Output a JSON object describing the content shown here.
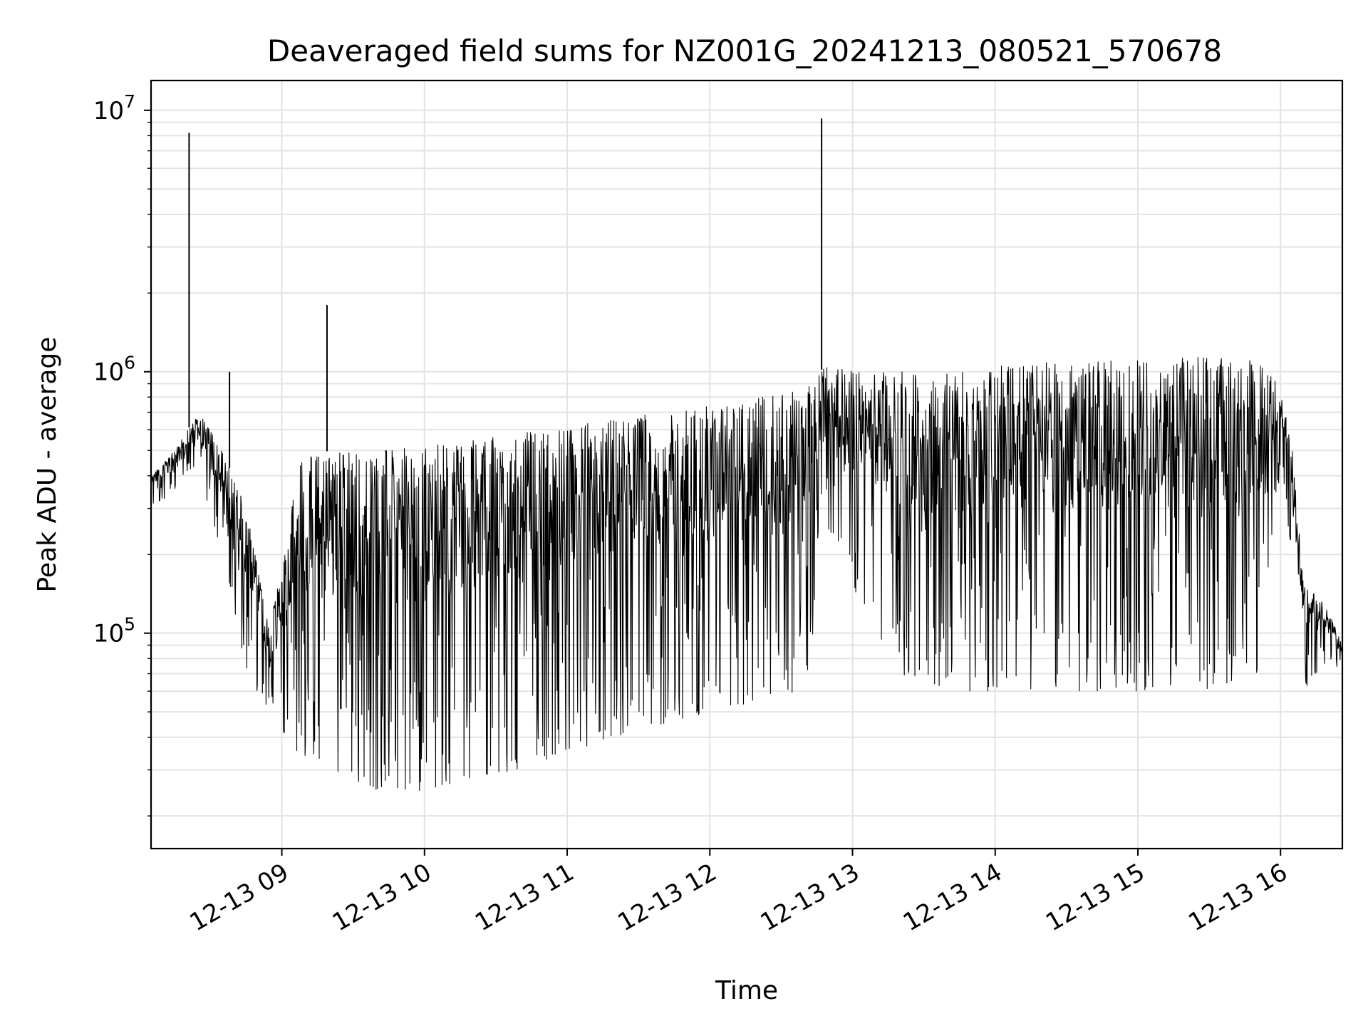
{
  "chart_data": {
    "type": "line",
    "title": "Deaveraged field sums for NZ001G_20241213_080521_570678",
    "xlabel": "Time",
    "ylabel": "Peak ADU - average",
    "y_scale": "log",
    "ylim": [
      15000,
      13000000
    ],
    "xlim": [
      "2024-12-13 08:05",
      "2024-12-13 16:26"
    ],
    "grid": true,
    "x_ticks": [
      {
        "label": "12-13 09",
        "time": "2024-12-13 09:00"
      },
      {
        "label": "12-13 10",
        "time": "2024-12-13 10:00"
      },
      {
        "label": "12-13 11",
        "time": "2024-12-13 11:00"
      },
      {
        "label": "12-13 12",
        "time": "2024-12-13 12:00"
      },
      {
        "label": "12-13 13",
        "time": "2024-12-13 13:00"
      },
      {
        "label": "12-13 14",
        "time": "2024-12-13 14:00"
      },
      {
        "label": "12-13 15",
        "time": "2024-12-13 15:00"
      },
      {
        "label": "12-13 16",
        "time": "2024-12-13 16:00"
      }
    ],
    "y_ticks": [
      {
        "base": "10",
        "exp": "5",
        "value": 100000
      },
      {
        "base": "10",
        "exp": "6",
        "value": 1000000
      },
      {
        "base": "10",
        "exp": "7",
        "value": 10000000
      }
    ],
    "line_color": "#000000",
    "series_envelope": {
      "times": [
        "2024-12-13 08:05",
        "2024-12-13 08:15",
        "2024-12-13 08:25",
        "2024-12-13 08:35",
        "2024-12-13 08:45",
        "2024-12-13 08:55",
        "2024-12-13 09:05",
        "2024-12-13 09:20",
        "2024-12-13 09:40",
        "2024-12-13 10:00",
        "2024-12-13 10:20",
        "2024-12-13 10:40",
        "2024-12-13 11:00",
        "2024-12-13 11:20",
        "2024-12-13 11:40",
        "2024-12-13 12:00",
        "2024-12-13 12:20",
        "2024-12-13 12:40",
        "2024-12-13 12:50",
        "2024-12-13 13:00",
        "2024-12-13 13:20",
        "2024-12-13 13:40",
        "2024-12-13 14:00",
        "2024-12-13 14:30",
        "2024-12-13 15:00",
        "2024-12-13 15:30",
        "2024-12-13 15:50",
        "2024-12-13 16:00",
        "2024-12-13 16:05",
        "2024-12-13 16:10",
        "2024-12-13 16:20",
        "2024-12-13 16:26"
      ],
      "upper": [
        400000,
        500000,
        700000,
        500000,
        300000,
        100000,
        450000,
        500000,
        500000,
        520000,
        550000,
        580000,
        620000,
        660000,
        700000,
        750000,
        800000,
        850000,
        1100000,
        1000000,
        1000000,
        1000000,
        1050000,
        1100000,
        1100000,
        1150000,
        1100000,
        900000,
        500000,
        150000,
        130000,
        90000
      ],
      "lower": [
        300000,
        350000,
        400000,
        200000,
        70000,
        50000,
        35000,
        30000,
        25000,
        25000,
        28000,
        30000,
        35000,
        40000,
        45000,
        50000,
        55000,
        60000,
        250000,
        150000,
        70000,
        60000,
        60000,
        60000,
        60000,
        60000,
        70000,
        400000,
        200000,
        60000,
        80000,
        70000
      ]
    },
    "spikes": [
      {
        "time": "2024-12-13 08:21",
        "value": 8200000
      },
      {
        "time": "2024-12-13 09:19",
        "value": 1800000
      },
      {
        "time": "2024-12-13 08:38",
        "value": 1000000
      },
      {
        "time": "2024-12-13 12:47",
        "value": 9300000
      }
    ]
  }
}
